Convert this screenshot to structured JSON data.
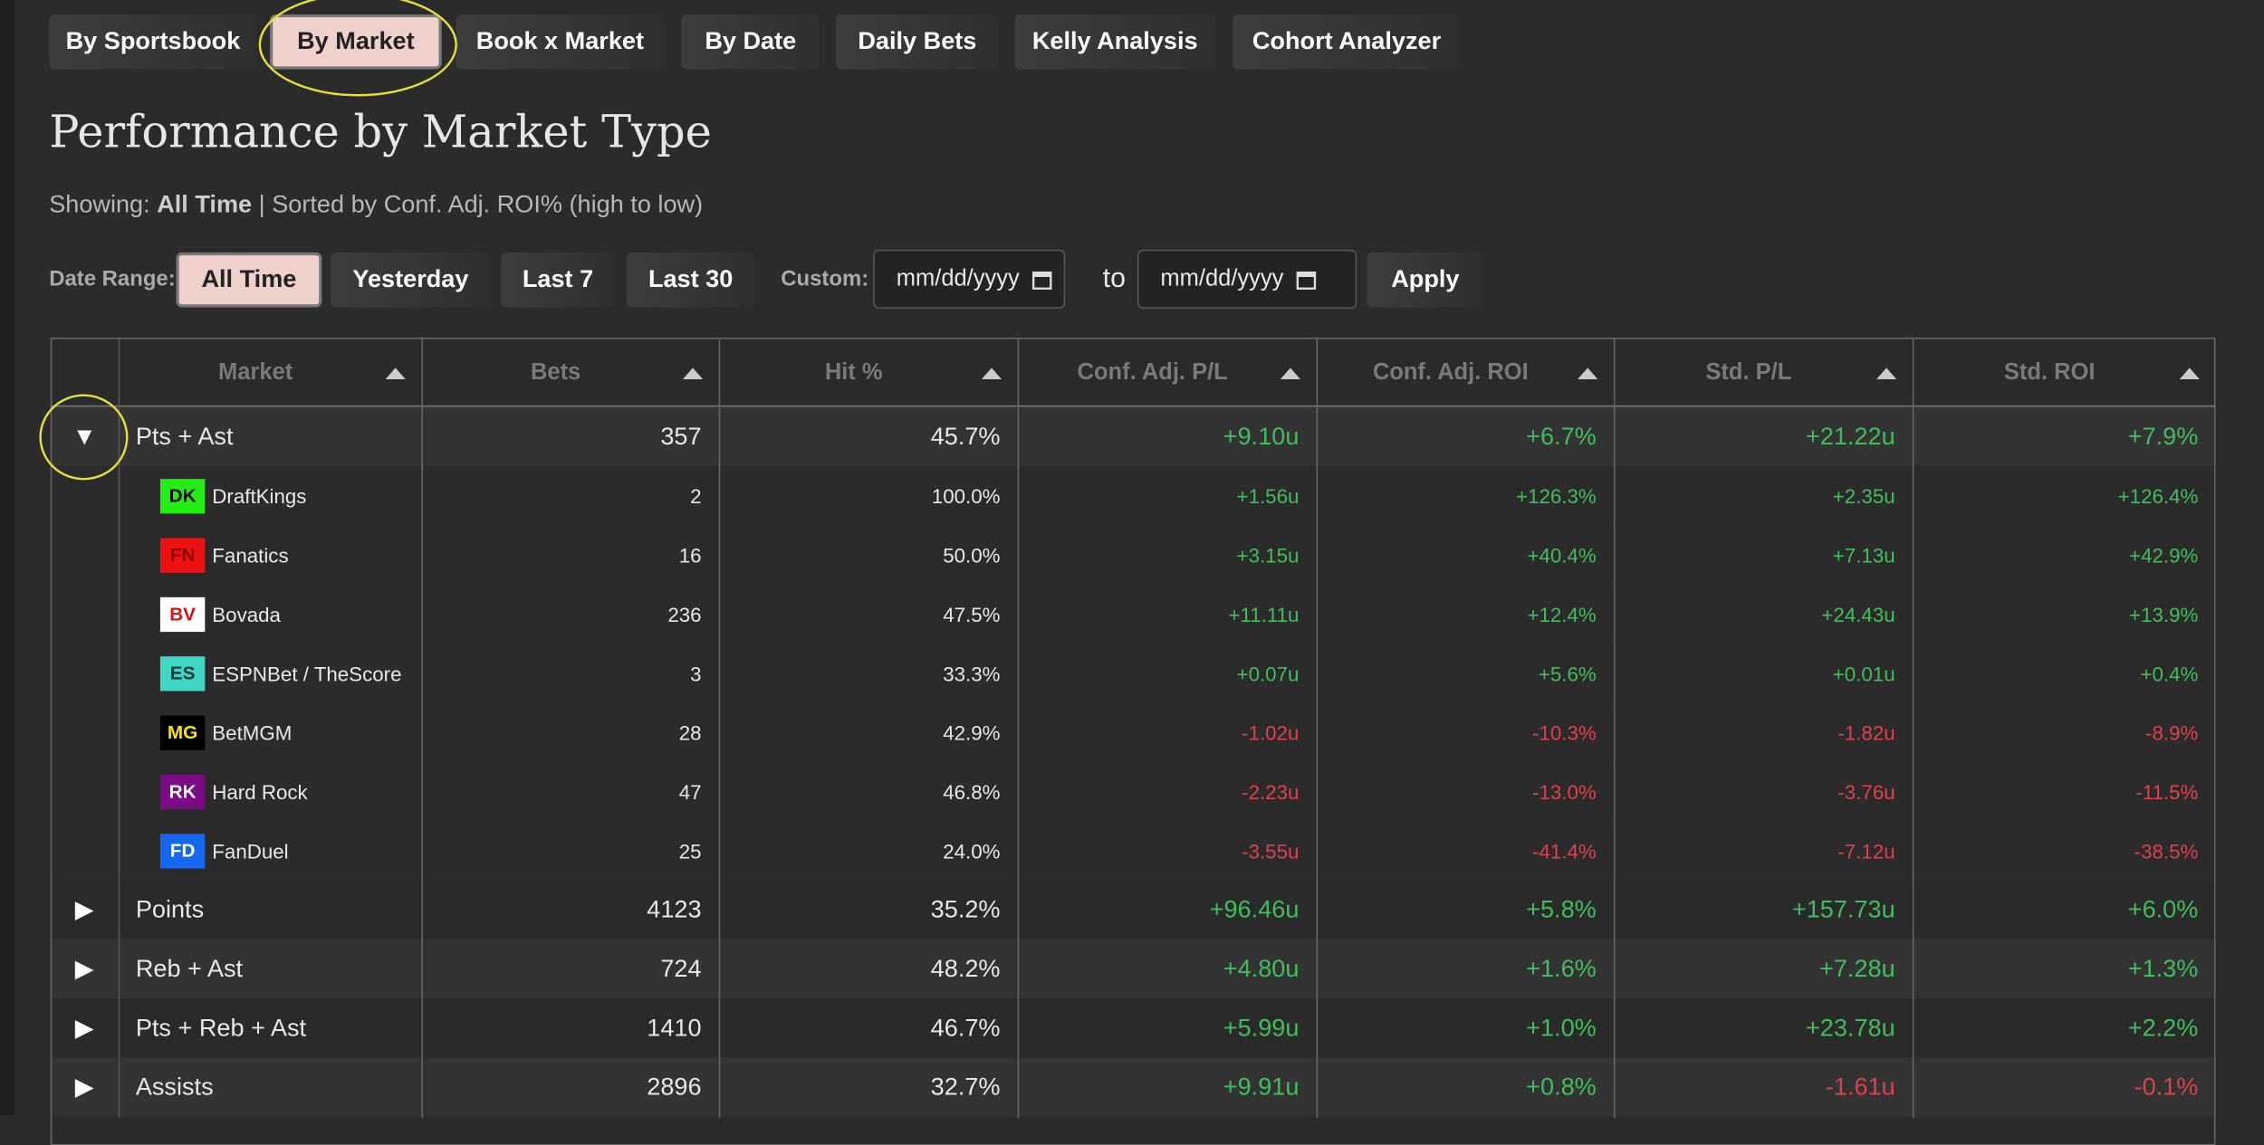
{
  "tabs": [
    "By Sportsbook",
    "By Market",
    "Book x Market",
    "By Date",
    "Daily Bets",
    "Kelly Analysis",
    "Cohort Analyzer"
  ],
  "title": "Performance by Market Type",
  "showing": {
    "label": "Showing:",
    "value": "All Time",
    "rest": "| Sorted by Conf. Adj. ROI% (high to low)"
  },
  "date_range": {
    "label": "Date Range:",
    "buttons": [
      "All Time",
      "Yesterday",
      "Last 7",
      "Last 30"
    ],
    "custom_label": "Custom:",
    "from": "mm/dd/yyyy",
    "to_label": "to",
    "to": "mm/dd/yyyy",
    "apply": "Apply"
  },
  "table": {
    "columns": [
      "Market",
      "Bets",
      "Hit %",
      "Conf. Adj. P/L",
      "Conf. Adj. ROI",
      "Std. P/L",
      "Std. ROI"
    ],
    "rows": [
      {
        "toggle": "▼",
        "cells": [
          "Pts + Ast",
          "357",
          "45.7%",
          "+9.10u",
          "+6.7%",
          "+21.22u",
          "+7.9%"
        ],
        "children": [
          {
            "badge": "DK",
            "badge_bg": "#22ee11",
            "badge_fg": "#000000",
            "cells": [
              "DraftKings",
              "2",
              "100.0%",
              "+1.56u",
              "+126.3%",
              "+2.35u",
              "+126.4%"
            ]
          },
          {
            "badge": "FN",
            "badge_bg": "#ee1111",
            "badge_fg": "#8a0000",
            "cells": [
              "Fanatics",
              "16",
              "50.0%",
              "+3.15u",
              "+40.4%",
              "+7.13u",
              "+42.9%"
            ]
          },
          {
            "badge": "BV",
            "badge_bg": "#ffffff",
            "badge_fg": "#dd1111",
            "cells": [
              "Bovada",
              "236",
              "47.5%",
              "+11.11u",
              "+12.4%",
              "+24.43u",
              "+13.9%"
            ]
          },
          {
            "badge": "ES",
            "badge_bg": "#3fd6c4",
            "badge_fg": "#0f3a36",
            "cells": [
              "ESPNBet / TheScore",
              "3",
              "33.3%",
              "+0.07u",
              "+5.6%",
              "+0.01u",
              "+0.4%"
            ]
          },
          {
            "badge": "MG",
            "badge_bg": "#000000",
            "badge_fg": "#f2e21a",
            "cells": [
              "BetMGM",
              "28",
              "42.9%",
              "-1.02u",
              "-10.3%",
              "-1.82u",
              "-8.9%"
            ]
          },
          {
            "badge": "RK",
            "badge_bg": "#7a0a86",
            "badge_fg": "#ffffff",
            "cells": [
              "Hard Rock",
              "47",
              "46.8%",
              "-2.23u",
              "-13.0%",
              "-3.76u",
              "-11.5%"
            ]
          },
          {
            "badge": "FD",
            "badge_bg": "#1468f0",
            "badge_fg": "#ffffff",
            "cells": [
              "FanDuel",
              "25",
              "24.0%",
              "-3.55u",
              "-41.4%",
              "-7.12u",
              "-38.5%"
            ]
          }
        ]
      },
      {
        "toggle": "▶",
        "cells": [
          "Points",
          "4123",
          "35.2%",
          "+96.46u",
          "+5.8%",
          "+157.73u",
          "+6.0%"
        ]
      },
      {
        "toggle": "▶",
        "cells": [
          "Reb + Ast",
          "724",
          "48.2%",
          "+4.80u",
          "+1.6%",
          "+7.28u",
          "+1.3%"
        ]
      },
      {
        "toggle": "▶",
        "cells": [
          "Pts + Reb + Ast",
          "1410",
          "46.7%",
          "+5.99u",
          "+1.0%",
          "+23.78u",
          "+2.2%"
        ]
      },
      {
        "toggle": "▶",
        "cells": [
          "Assists",
          "2896",
          "32.7%",
          "+9.91u",
          "+0.8%",
          "-1.61u",
          "-0.1%"
        ]
      }
    ]
  }
}
